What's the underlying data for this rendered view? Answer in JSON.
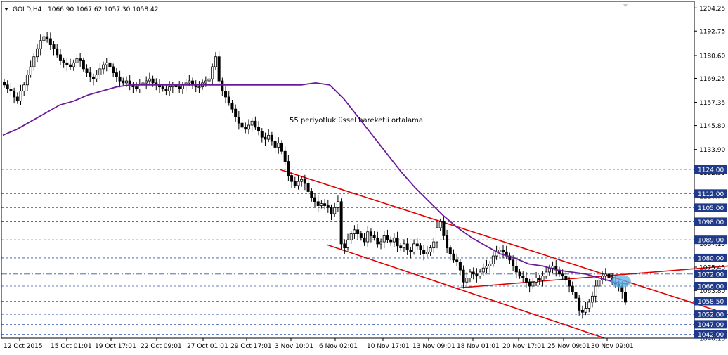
{
  "header": {
    "symbol": "GOLD,H4",
    "ohlc": "1066.90 1067.62 1057.30 1058.42",
    "menu_icon": "triangle-down-icon"
  },
  "annotation": "55 periyotluk üssel hareketli ortalama",
  "colors": {
    "candle": "#000000",
    "ema": "#6a1b9a",
    "trendline": "#e00000",
    "level_line": "#3355aa",
    "price_box": "#1f3a8a",
    "highlight": "#5ab4e8",
    "axis": "#000000"
  },
  "x_axis": {
    "labels": [
      "12 Oct 2015",
      "15 Oct 01:01",
      "19 Oct 17:01",
      "22 Oct 09:01",
      "27 Oct 01:01",
      "29 Oct 17:01",
      "3 Nov 10:01",
      "6 Nov 02:01",
      "10 Nov 17:01",
      "13 Nov 09:01",
      "18 Nov 01:01",
      "20 Nov 17:01",
      "25 Nov 09:01",
      "30 Nov 09:01"
    ]
  },
  "y_axis": {
    "ticks": [
      "1204.25",
      "1192.75",
      "1180.60",
      "1169.25",
      "1157.35",
      "1145.80",
      "1133.90",
      "1122.35",
      "1110.70",
      "1098.85",
      "1087.15",
      "1075.45",
      "1063.80",
      "1052.05",
      "1040.15"
    ]
  },
  "price_levels": [
    "1124.00",
    "1112.00",
    "1105.00",
    "1098.00",
    "1089.00",
    "1080.00",
    "1072.00",
    "1066.00",
    "1058.50",
    "1052.00",
    "1047.00",
    "1042.00"
  ],
  "chart_data": {
    "type": "candlestick",
    "title": "GOLD,H4",
    "ylim": [
      1040.15,
      1207.5
    ],
    "x_range": [
      "12 Oct 2015",
      "2 Dec 2015"
    ],
    "close_series": [
      1166,
      1164,
      1163,
      1160,
      1158,
      1163,
      1166,
      1171,
      1175,
      1180,
      1184,
      1188,
      1190,
      1189,
      1186,
      1184,
      1181,
      1178,
      1177,
      1176,
      1175,
      1177,
      1179,
      1178,
      1174,
      1172,
      1170,
      1169,
      1171,
      1174,
      1176,
      1177,
      1175,
      1172,
      1170,
      1168,
      1167,
      1168,
      1166,
      1165,
      1164,
      1166,
      1167,
      1168,
      1169,
      1167,
      1166,
      1165,
      1164,
      1163,
      1165,
      1166,
      1165,
      1164,
      1166,
      1167,
      1168,
      1166,
      1165,
      1165,
      1167,
      1168,
      1169,
      1175,
      1180,
      1168,
      1163,
      1160,
      1157,
      1154,
      1150,
      1147,
      1145,
      1144,
      1146,
      1148,
      1145,
      1143,
      1140,
      1139,
      1141,
      1138,
      1135,
      1137,
      1133,
      1128,
      1121,
      1118,
      1116,
      1118,
      1119,
      1117,
      1113,
      1110,
      1108,
      1106,
      1107,
      1106,
      1105,
      1102,
      1105,
      1108,
      1087,
      1085,
      1089,
      1092,
      1094,
      1092,
      1090,
      1088,
      1093,
      1091,
      1090,
      1087,
      1088,
      1091,
      1089,
      1088,
      1090,
      1086,
      1085,
      1087,
      1084,
      1083,
      1087,
      1086,
      1084,
      1082,
      1083,
      1085,
      1088,
      1095,
      1098,
      1091,
      1085,
      1082,
      1079,
      1078,
      1074,
      1068,
      1070,
      1073,
      1072,
      1071,
      1073,
      1075,
      1076,
      1077,
      1081,
      1083,
      1084,
      1083,
      1081,
      1079,
      1076,
      1073,
      1071,
      1070,
      1068,
      1066,
      1068,
      1070,
      1069,
      1071,
      1073,
      1075,
      1076,
      1074,
      1072,
      1071,
      1069,
      1066,
      1063,
      1060,
      1054,
      1053,
      1055,
      1058,
      1061,
      1066,
      1069,
      1071,
      1072,
      1070,
      1068,
      1067,
      1066,
      1063,
      1058
    ],
    "ema_55": [
      1141,
      1144,
      1148,
      1152,
      1156,
      1158,
      1161,
      1163,
      1165,
      1166,
      1166,
      1166,
      1166,
      1166,
      1166,
      1166,
      1166,
      1166,
      1166,
      1166,
      1166,
      1166,
      1167,
      1166,
      1159,
      1150,
      1141,
      1132,
      1123,
      1115,
      1108,
      1101,
      1095,
      1090,
      1086,
      1082,
      1080,
      1077,
      1076,
      1074,
      1073,
      1072,
      1070,
      1068,
      1067
    ],
    "horizontal_levels": [
      1124.0,
      1112.0,
      1105.0,
      1098.0,
      1089.0,
      1080.0,
      1072.0,
      1066.0,
      1058.5,
      1052.0,
      1047.0,
      1042.0
    ],
    "trendlines": [
      {
        "from": [
          "3 Nov 10:01",
          1124
        ],
        "to": [
          "30 Nov 09:01",
          1066
        ],
        "extended": true
      },
      {
        "from": [
          "6 Nov 02:01",
          1086
        ],
        "to": [
          "30 Nov 09:01",
          1040
        ],
        "extended": true
      },
      {
        "from": [
          "18 Nov 01:01",
          1064
        ],
        "to": [
          "30 Nov 09:01",
          1072
        ],
        "extended": true
      }
    ],
    "current_price": 1058.42
  }
}
